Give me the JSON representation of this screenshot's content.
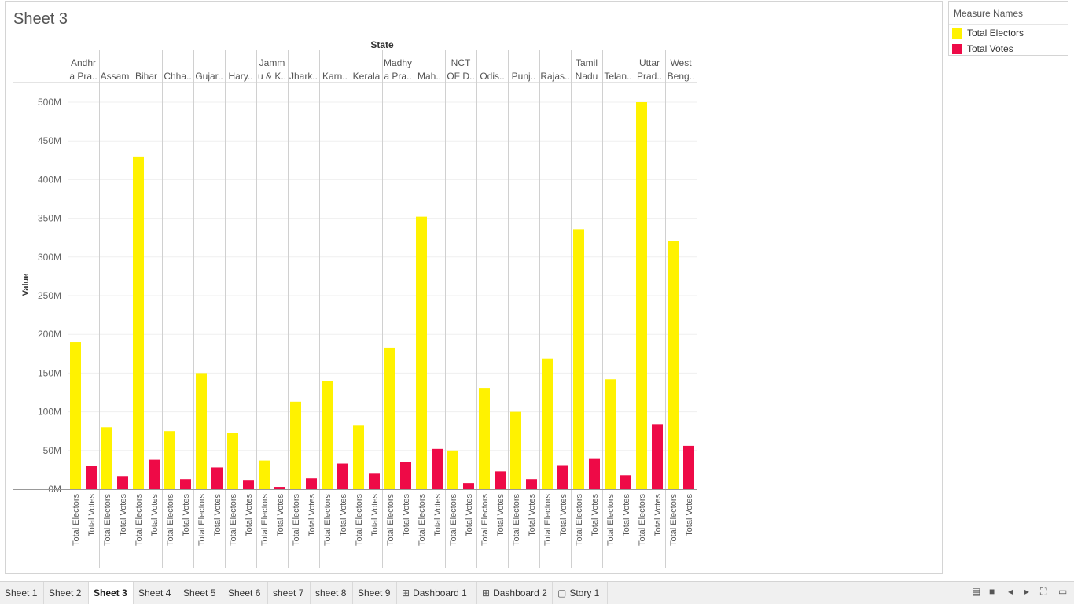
{
  "sheet": {
    "title": "Sheet 3"
  },
  "chart_data": {
    "type": "bar",
    "column_header": "State",
    "ylabel": "Value",
    "ylim": [
      0,
      520000000
    ],
    "y_ticks": [
      0,
      50000000,
      100000000,
      150000000,
      200000000,
      250000000,
      300000000,
      350000000,
      400000000,
      450000000,
      500000000
    ],
    "y_tick_labels": [
      "0M",
      "50M",
      "100M",
      "150M",
      "200M",
      "250M",
      "300M",
      "350M",
      "400M",
      "450M",
      "500M"
    ],
    "categories": [
      [
        "Andhr",
        "a Pra.."
      ],
      [
        "Assam"
      ],
      [
        "Bihar"
      ],
      [
        "Chha.."
      ],
      [
        "Gujar.."
      ],
      [
        "Hary.."
      ],
      [
        "Jamm",
        "u & K.."
      ],
      [
        "Jhark.."
      ],
      [
        "Karn.."
      ],
      [
        "Kerala"
      ],
      [
        "Madhy",
        "a Pra.."
      ],
      [
        "Mah.."
      ],
      [
        "NCT",
        "OF D.."
      ],
      [
        "Odis.."
      ],
      [
        "Punj.."
      ],
      [
        "Rajas.."
      ],
      [
        "Tamil",
        "Nadu"
      ],
      [
        "Telan.."
      ],
      [
        "Uttar",
        "Prad.."
      ],
      [
        "West",
        "Beng.."
      ]
    ],
    "bar_labels": [
      "Total Electors",
      "Total Votes"
    ],
    "series": [
      {
        "name": "Total Electors",
        "color": "#FFF200",
        "values": [
          190000000,
          80000000,
          430000000,
          75000000,
          150000000,
          73000000,
          37000000,
          113000000,
          140000000,
          82000000,
          183000000,
          352000000,
          50000000,
          131000000,
          100000000,
          169000000,
          336000000,
          142000000,
          500000000,
          321000000
        ]
      },
      {
        "name": "Total Votes",
        "color": "#EE0A47",
        "values": [
          30000000,
          17000000,
          38000000,
          13000000,
          28000000,
          12000000,
          3000000,
          14000000,
          33000000,
          20000000,
          35000000,
          52000000,
          8000000,
          23000000,
          13000000,
          31000000,
          40000000,
          18000000,
          84000000,
          56000000
        ]
      }
    ]
  },
  "legend": {
    "title": "Measure Names",
    "items": [
      {
        "label": "Total Electors",
        "color": "#FFF200"
      },
      {
        "label": "Total Votes",
        "color": "#EE0A47"
      }
    ]
  },
  "tabs": [
    {
      "label": "Sheet 1",
      "icon": ""
    },
    {
      "label": "Sheet 2",
      "icon": ""
    },
    {
      "label": "Sheet 3",
      "icon": "",
      "active": true
    },
    {
      "label": "Sheet 4",
      "icon": ""
    },
    {
      "label": "Sheet 5",
      "icon": ""
    },
    {
      "label": "Sheet 6",
      "icon": ""
    },
    {
      "label": "sheet 7",
      "icon": ""
    },
    {
      "label": "sheet 8",
      "icon": ""
    },
    {
      "label": "Sheet 9",
      "icon": ""
    },
    {
      "label": "Dashboard 1",
      "icon": "dashboard-icon"
    },
    {
      "label": "Dashboard 2",
      "icon": "dashboard-icon"
    },
    {
      "label": "Story 1",
      "icon": "story-icon"
    }
  ],
  "controls": {
    "icons": [
      "show-sheet-sorter-icon",
      "show-filmstrip-icon",
      "previous-sheet-icon",
      "next-sheet-icon",
      "fit-to-window-icon",
      "presentation-mode-icon"
    ]
  }
}
